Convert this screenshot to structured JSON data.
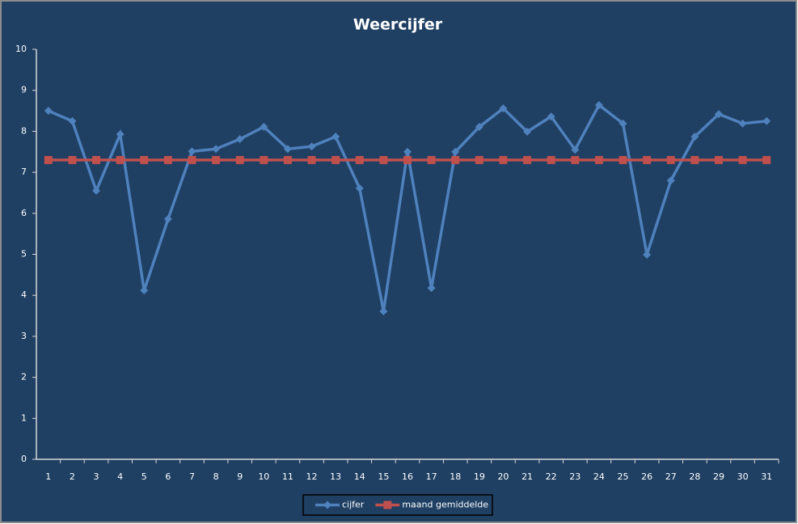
{
  "chart_data": {
    "type": "line",
    "title": "Weercijfer",
    "categories": [
      "1",
      "2",
      "3",
      "4",
      "5",
      "6",
      "7",
      "8",
      "9",
      "10",
      "11",
      "12",
      "13",
      "14",
      "15",
      "16",
      "17",
      "18",
      "19",
      "20",
      "21",
      "22",
      "23",
      "24",
      "25",
      "26",
      "27",
      "28",
      "29",
      "30",
      "31"
    ],
    "series": [
      {
        "name": "cijfer",
        "color": "#4f81bd",
        "marker": "diamond",
        "values": [
          8.5,
          8.25,
          6.55,
          7.93,
          4.12,
          5.86,
          7.51,
          7.57,
          7.81,
          8.11,
          7.57,
          7.63,
          7.87,
          6.61,
          3.61,
          7.5,
          4.18,
          7.5,
          8.11,
          8.56,
          7.99,
          8.36,
          7.55,
          8.64,
          8.19,
          4.99,
          6.8,
          7.87,
          8.42,
          8.19,
          8.25
        ]
      },
      {
        "name": "maand gemiddelde",
        "color": "#c0504d",
        "marker": "square",
        "values": [
          7.3,
          7.3,
          7.3,
          7.3,
          7.3,
          7.3,
          7.3,
          7.3,
          7.3,
          7.3,
          7.3,
          7.3,
          7.3,
          7.3,
          7.3,
          7.3,
          7.3,
          7.3,
          7.3,
          7.3,
          7.3,
          7.3,
          7.3,
          7.3,
          7.3,
          7.3,
          7.3,
          7.3,
          7.3,
          7.3,
          7.3
        ]
      }
    ],
    "ylim": [
      0,
      10
    ],
    "yticks": [
      0,
      1,
      2,
      3,
      4,
      5,
      6,
      7,
      8,
      9,
      10
    ],
    "grid": false,
    "legend": "bottom"
  }
}
